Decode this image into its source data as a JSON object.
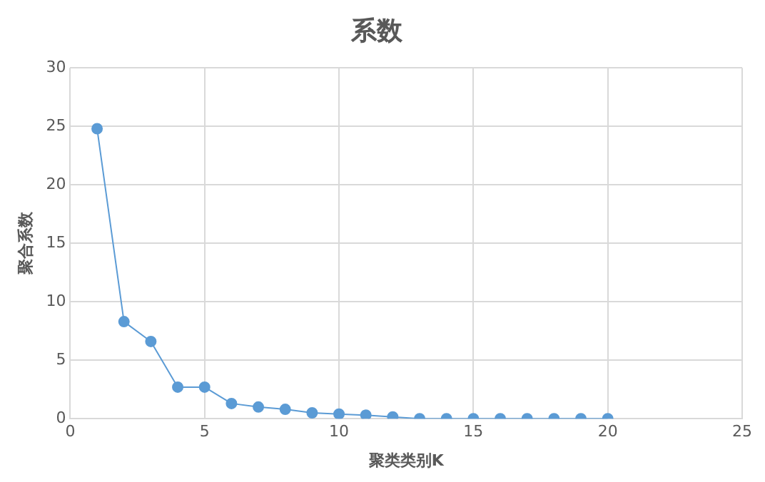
{
  "chart_data": {
    "type": "line",
    "title": "系数",
    "xlabel": "聚类类别K",
    "ylabel": "聚合系数",
    "x": [
      1,
      2,
      3,
      4,
      5,
      6,
      7,
      8,
      9,
      10,
      11,
      12,
      13,
      14,
      15,
      16,
      17,
      18,
      19,
      20
    ],
    "series": [
      {
        "color": "#5b9bd5",
        "values": [
          24.8,
          8.3,
          6.6,
          2.7,
          2.7,
          1.3,
          1.0,
          0.8,
          0.5,
          0.4,
          0.3,
          0.15,
          0,
          0,
          0,
          0,
          0,
          0,
          0,
          0
        ]
      }
    ],
    "xlim": [
      0,
      25
    ],
    "xticks": [
      0,
      5,
      10,
      15,
      20,
      25
    ],
    "ylim": [
      0,
      30
    ],
    "yticks": [
      0,
      5,
      10,
      15,
      20,
      25,
      30
    ],
    "grid": true,
    "legend": false,
    "marker": "circle",
    "line_style": "solid"
  }
}
